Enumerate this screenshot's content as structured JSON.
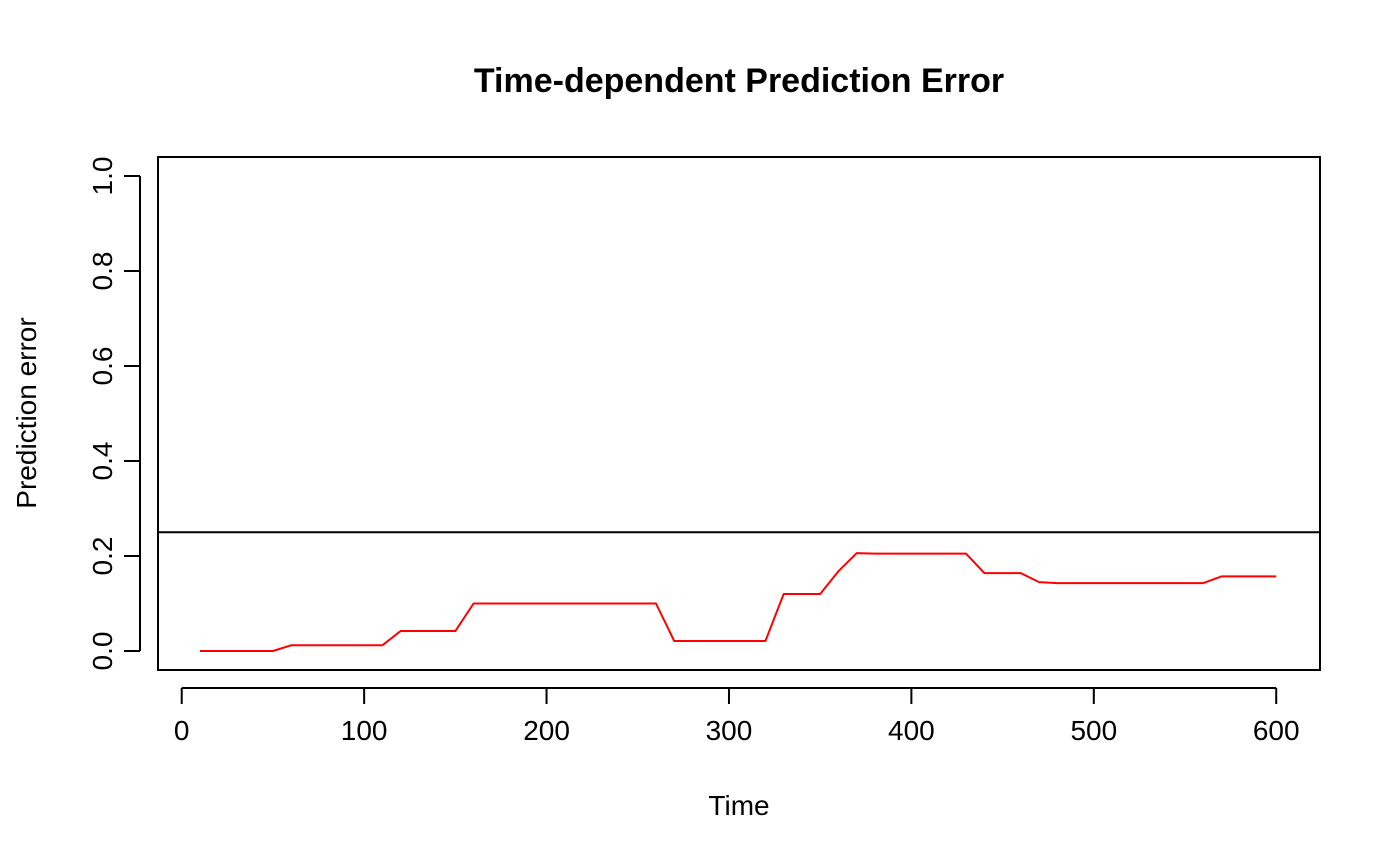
{
  "chart_data": {
    "type": "line",
    "title": "Time-dependent Prediction Error",
    "xlabel": "Time",
    "ylabel": "Prediction error",
    "xlim": [
      -13,
      624
    ],
    "ylim": [
      -0.04,
      1.04
    ],
    "x_ticks": [
      0,
      100,
      200,
      300,
      400,
      500,
      600
    ],
    "y_ticks": [
      0.0,
      0.2,
      0.4,
      0.6,
      0.8,
      1.0
    ],
    "x_tick_labels": [
      "0",
      "100",
      "200",
      "300",
      "400",
      "500",
      "600"
    ],
    "y_tick_labels": [
      "0.0",
      "0.2",
      "0.4",
      "0.6",
      "0.8",
      "1.0"
    ],
    "reference_line": {
      "y": 0.25,
      "color": "#000000"
    },
    "grid": false,
    "series": [
      {
        "color": "#ff0000",
        "x": [
          10,
          50,
          60,
          110,
          120,
          150,
          160,
          260,
          270,
          320,
          330,
          350,
          360,
          370,
          380,
          430,
          440,
          460,
          470,
          480,
          560,
          570,
          600
        ],
        "y": [
          0.0,
          0.0,
          0.012,
          0.012,
          0.042,
          0.042,
          0.1,
          0.1,
          0.021,
          0.021,
          0.12,
          0.12,
          0.168,
          0.206,
          0.205,
          0.205,
          0.164,
          0.164,
          0.145,
          0.143,
          0.143,
          0.157,
          0.157
        ]
      }
    ]
  }
}
